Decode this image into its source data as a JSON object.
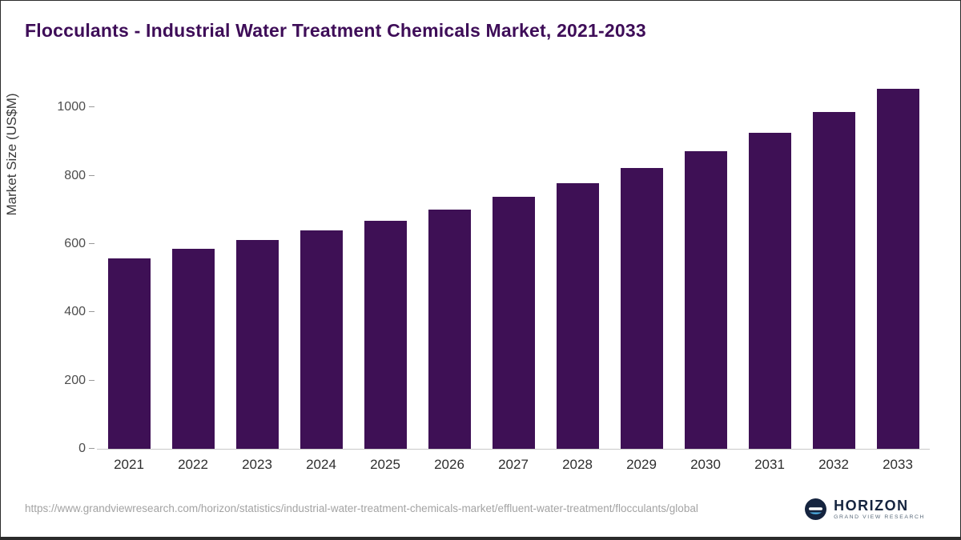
{
  "title": "Flocculants - Industrial Water Treatment Chemicals Market, 2021-2033",
  "source_url": "https://www.grandviewresearch.com/horizon/statistics/industrial-water-treatment-chemicals-market/effluent-water-treatment/flocculants/global",
  "logo": {
    "name": "HORIZON",
    "subtitle": "GRAND VIEW RESEARCH"
  },
  "colors": {
    "bar": "#3e1055",
    "title": "#3e0d58",
    "axis_text": "#4d4d4d",
    "footer_text": "#a3a3a3",
    "logo_navy": "#15243f",
    "logo_blue": "#4fb3e8"
  },
  "chart_data": {
    "type": "bar",
    "title": "Flocculants - Industrial Water Treatment Chemicals Market, 2021-2033",
    "xlabel": "",
    "ylabel": "Market Size (US$M)",
    "categories": [
      "2021",
      "2022",
      "2023",
      "2024",
      "2025",
      "2026",
      "2027",
      "2028",
      "2029",
      "2030",
      "2031",
      "2032",
      "2033"
    ],
    "values": [
      558,
      586,
      612,
      640,
      668,
      702,
      738,
      778,
      822,
      872,
      925,
      987,
      1055
    ],
    "ylim": [
      0,
      1055
    ],
    "yticks": [
      0,
      200,
      400,
      600,
      800,
      1000
    ],
    "grid": false,
    "legend": false,
    "bar_color": "#3e1055"
  }
}
